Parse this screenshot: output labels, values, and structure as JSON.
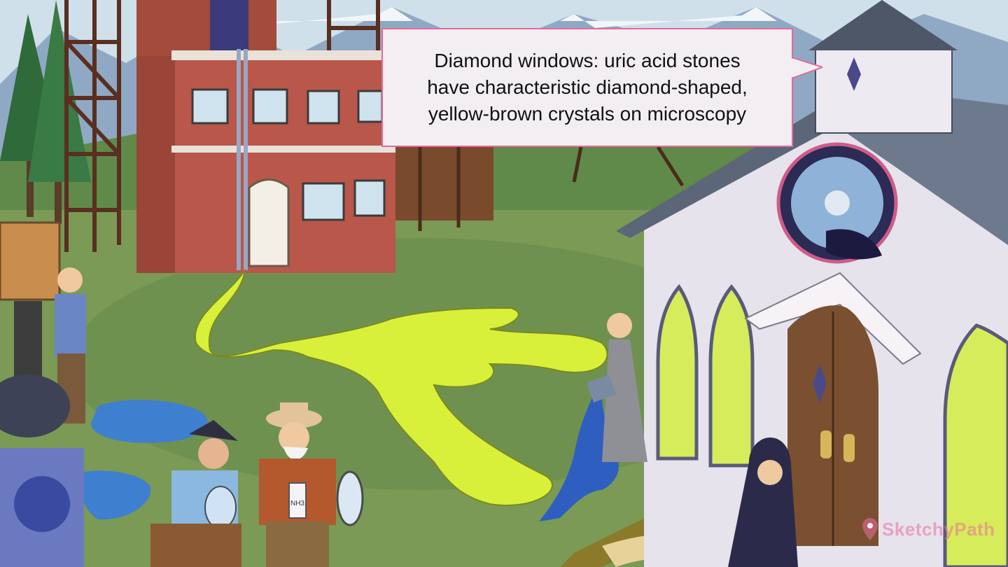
{
  "callout": {
    "text": "Diamond windows: uric acid stones\nhave characteristic diamond-shaped,\nyellow-brown crystals on microscopy"
  },
  "watermark": {
    "text": "SketchyPath",
    "color": "#eb6ea0",
    "icon": "map-pin-icon"
  },
  "scene": {
    "label_on_bottle": "NH3"
  },
  "colors": {
    "sky": "#cfe0ea",
    "grass": "#7a9a55",
    "brick": "#b9574a",
    "church_siding": "#e6e3ec",
    "roof": "#5b6678",
    "acid_yellow": "#d8f03a",
    "water_blue": "#3f7fd0",
    "callout_border": "#e46a9b"
  }
}
